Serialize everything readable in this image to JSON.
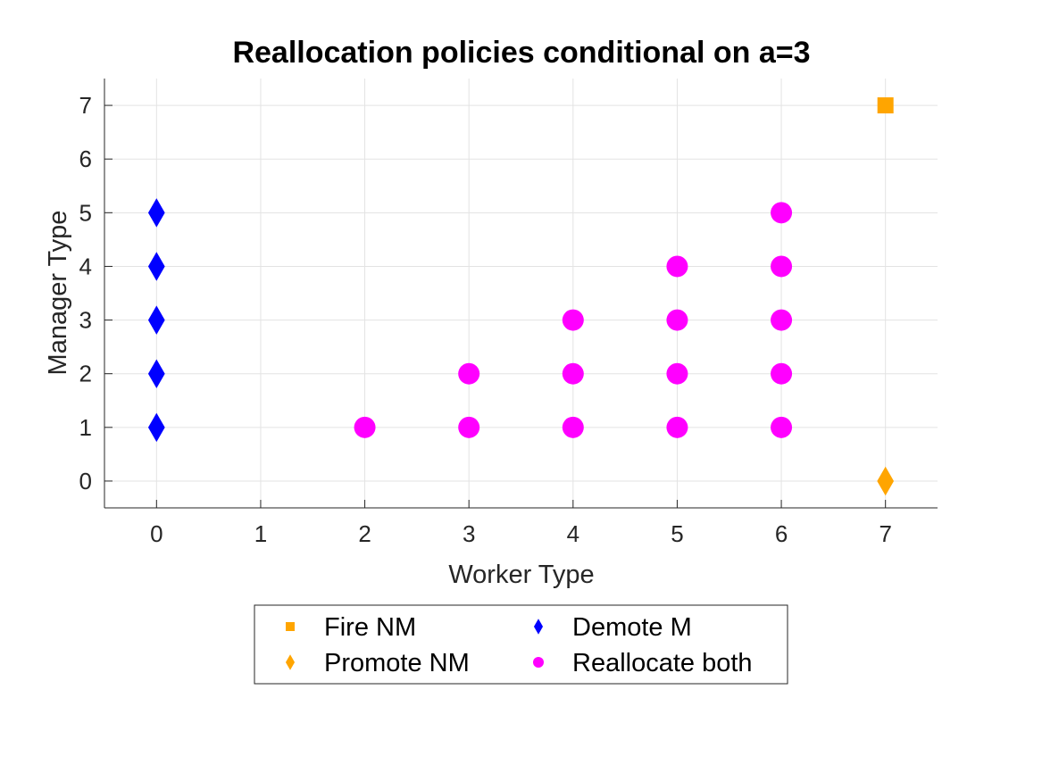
{
  "chart_data": {
    "type": "scatter",
    "title": "Reallocation policies conditional on a=3",
    "xlabel": "Worker Type",
    "ylabel": "Manager Type",
    "xlim": [
      -0.5,
      7.5
    ],
    "ylim": [
      -0.5,
      7.5
    ],
    "xticks": [
      0,
      1,
      2,
      3,
      4,
      5,
      6,
      7
    ],
    "yticks": [
      0,
      1,
      2,
      3,
      4,
      5,
      6,
      7
    ],
    "grid": true,
    "legend_position": "bottom-outside",
    "legend_columns": 2,
    "series": [
      {
        "name": "Fire NM",
        "marker": "square",
        "color": "#FFA500",
        "points": [
          [
            7,
            7
          ]
        ]
      },
      {
        "name": "Promote NM",
        "marker": "diamond",
        "color": "#FFA500",
        "points": [
          [
            7,
            0
          ]
        ]
      },
      {
        "name": "Demote M",
        "marker": "diamond",
        "color": "#0000FF",
        "points": [
          [
            0,
            1
          ],
          [
            0,
            2
          ],
          [
            0,
            3
          ],
          [
            0,
            4
          ],
          [
            0,
            5
          ]
        ]
      },
      {
        "name": "Reallocate both",
        "marker": "circle",
        "color": "#FF00FF",
        "points": [
          [
            2,
            1
          ],
          [
            3,
            1
          ],
          [
            3,
            2
          ],
          [
            4,
            1
          ],
          [
            4,
            2
          ],
          [
            4,
            3
          ],
          [
            5,
            1
          ],
          [
            5,
            2
          ],
          [
            5,
            3
          ],
          [
            5,
            4
          ],
          [
            6,
            1
          ],
          [
            6,
            2
          ],
          [
            6,
            3
          ],
          [
            6,
            4
          ],
          [
            6,
            5
          ]
        ]
      }
    ]
  }
}
